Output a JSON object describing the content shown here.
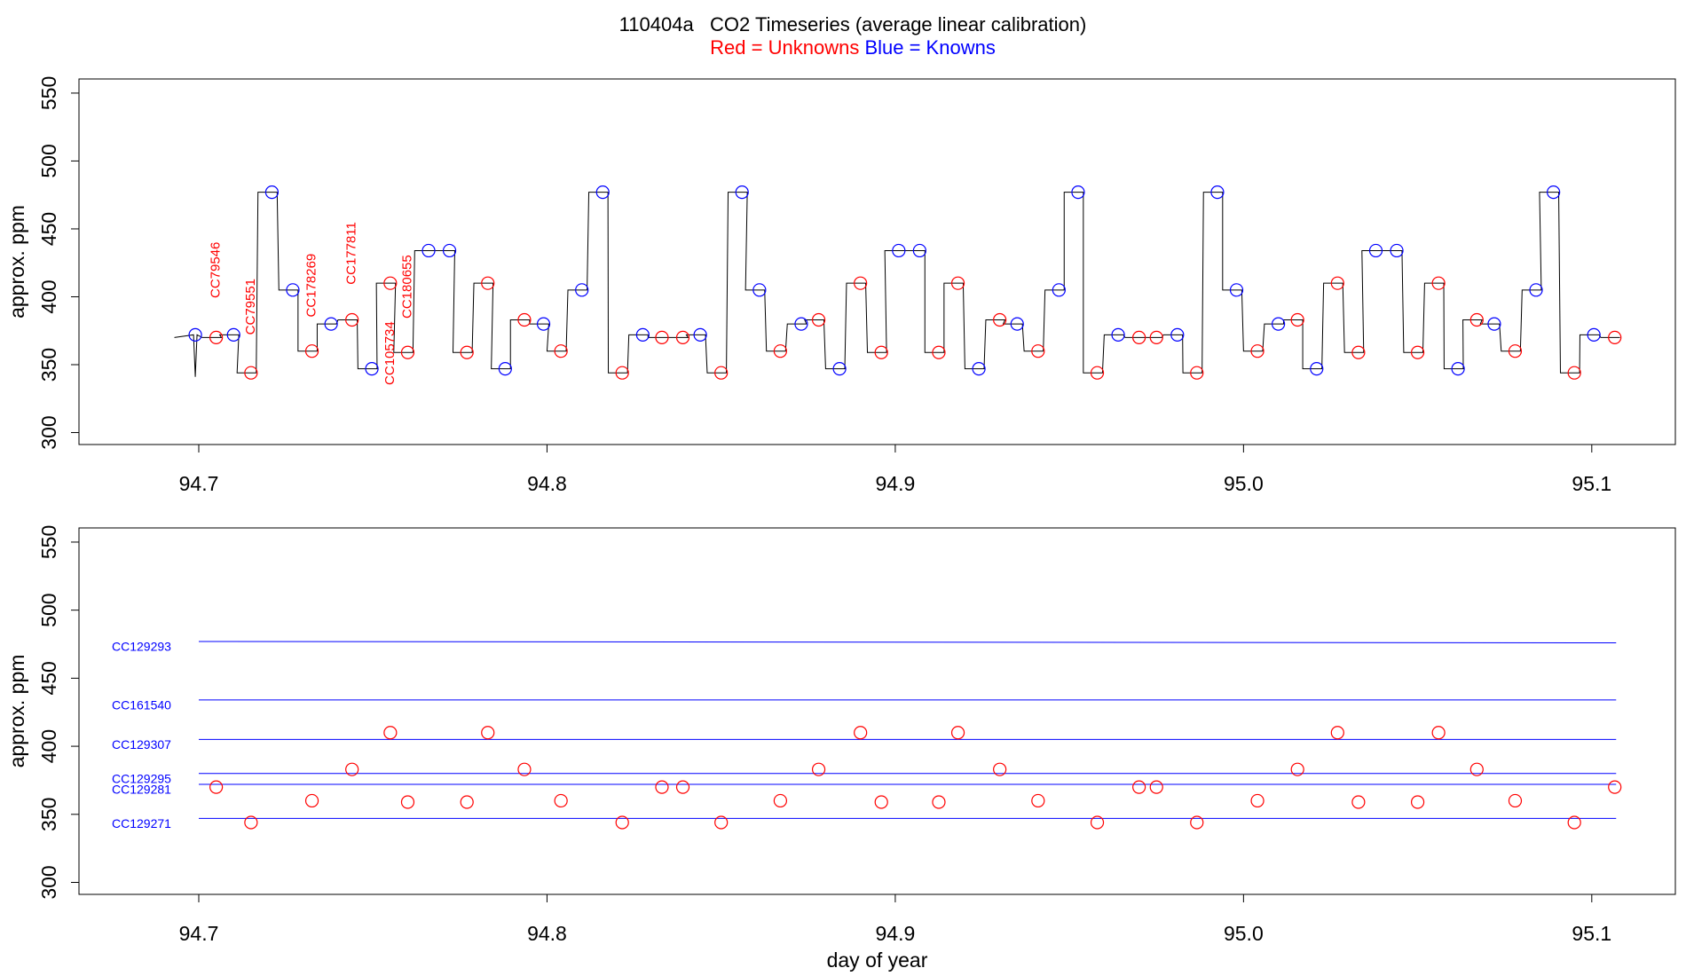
{
  "chart_data": [
    {
      "type": "scatter",
      "title": "110404a   CO2 Timeseries (average linear calibration)",
      "ylabel": "approx. ppm",
      "xlim": [
        94.6656,
        95.124
      ],
      "ylim": [
        291.2,
        560.4
      ],
      "xticks": [
        94.7,
        94.8,
        94.9,
        {
          "value": 95,
          "label": "95.0"
        },
        95.1
      ],
      "yticks": [
        300,
        350,
        400,
        450,
        500,
        550
      ],
      "trace": {
        "color": "#000000",
        "x": [
          94.693,
          94.6985,
          94.699,
          94.6995,
          94.701,
          94.7065,
          94.706,
          94.7115,
          94.711,
          94.7165,
          94.717,
          94.7225,
          94.723,
          94.7285,
          94.7285,
          94.734,
          94.734,
          94.7395,
          94.74,
          94.7455,
          94.7457,
          94.7512,
          94.751,
          94.7565,
          94.756,
          94.7615,
          94.762,
          94.7675,
          94.768,
          94.7735,
          94.773,
          94.7785,
          94.779,
          94.7845,
          94.784,
          94.7895,
          94.7895,
          94.795,
          94.795,
          94.8005,
          94.8,
          94.8055,
          94.806,
          94.8115,
          94.812,
          94.8175,
          94.8176,
          94.8231,
          94.8235,
          94.829,
          94.829,
          94.8345,
          94.835,
          94.8405,
          94.84,
          94.8455,
          94.846,
          94.8515,
          94.852,
          94.8575,
          94.857,
          94.8625,
          94.863,
          94.8685,
          94.869,
          94.8745,
          94.874,
          94.8795,
          94.88,
          94.8855,
          94.886,
          94.8915,
          94.892,
          94.8975,
          94.897,
          94.9025,
          94.903,
          94.9085,
          94.9085,
          94.914,
          94.914,
          94.9195,
          94.92,
          94.9255,
          94.926,
          94.9315,
          94.931,
          94.9365,
          94.937,
          94.9425,
          94.943,
          94.9485,
          94.9485,
          94.954,
          94.954,
          94.9595,
          94.96,
          94.9655,
          94.966,
          94.9715,
          94.971,
          94.9765,
          94.977,
          94.9825,
          94.9826,
          94.9881,
          94.9885,
          94.994,
          94.994,
          94.9995,
          95.0,
          95.0055,
          95.006,
          95.0115,
          95.0115,
          95.017,
          95.017,
          95.0225,
          95.023,
          95.0285,
          95.029,
          95.0345,
          95.034,
          95.0395,
          95.04,
          95.0455,
          95.046,
          95.0515,
          95.052,
          95.0575,
          95.0576,
          95.0631,
          95.063,
          95.0685,
          95.068,
          95.0735,
          95.074,
          95.0795,
          95.08,
          95.0855,
          95.085,
          95.0905,
          95.091,
          95.0965,
          95.0966,
          95.1021,
          95.1026,
          95.1081
        ],
        "values": [
          370,
          372,
          341,
          372,
          370,
          370,
          372,
          372,
          344,
          344,
          477,
          477,
          405,
          405,
          360,
          360,
          380,
          380,
          383,
          383,
          347,
          347,
          410,
          410,
          359,
          359,
          434,
          434,
          434,
          434,
          359,
          359,
          410,
          410,
          347,
          347,
          383,
          383,
          380,
          380,
          360,
          360,
          405,
          405,
          477,
          477,
          344,
          344,
          372,
          372,
          370,
          370,
          370,
          370,
          372,
          372,
          344,
          344,
          477,
          477,
          405,
          405,
          360,
          360,
          380,
          380,
          383,
          383,
          347,
          347,
          410,
          410,
          359,
          359,
          434,
          434,
          434,
          434,
          359,
          359,
          410,
          410,
          347,
          347,
          383,
          383,
          380,
          380,
          360,
          360,
          405,
          405,
          477,
          477,
          344,
          344,
          372,
          372,
          370,
          370,
          370,
          370,
          372,
          372,
          344,
          344,
          477,
          477,
          405,
          405,
          360,
          360,
          380,
          380,
          383,
          383,
          347,
          347,
          410,
          410,
          359,
          359,
          434,
          434,
          434,
          434,
          359,
          359,
          410,
          410,
          347,
          347,
          383,
          383,
          380,
          380,
          360,
          360,
          405,
          405,
          477,
          477,
          344,
          344,
          372,
          372,
          370,
          370
        ]
      },
      "series": [
        {
          "name": "Red = Unknowns",
          "color": "#ff0000",
          "x": [
            94.705,
            94.715,
            94.7325,
            94.744,
            94.755,
            94.76,
            94.777,
            94.783,
            94.7935,
            94.804,
            94.8216,
            94.833,
            94.839,
            94.85,
            94.867,
            94.878,
            94.89,
            94.896,
            94.9125,
            94.918,
            94.93,
            94.941,
            94.958,
            94.97,
            94.975,
            94.9866,
            95.004,
            95.0155,
            95.027,
            95.033,
            95.05,
            95.056,
            95.067,
            95.078,
            95.095,
            95.1066
          ],
          "values": [
            370,
            344,
            360,
            383,
            410,
            359,
            359,
            410,
            383,
            360,
            344,
            370,
            370,
            344,
            360,
            383,
            410,
            359,
            359,
            410,
            383,
            360,
            344,
            370,
            370,
            344,
            360,
            383,
            410,
            359,
            359,
            410,
            383,
            360,
            344,
            370
          ]
        },
        {
          "name": "Blue = Knowns",
          "color": "#0000ff",
          "x": [
            94.699,
            94.71,
            94.721,
            94.727,
            94.738,
            94.7497,
            94.766,
            94.772,
            94.788,
            94.799,
            94.81,
            94.816,
            94.8275,
            94.844,
            94.856,
            94.861,
            94.873,
            94.884,
            94.901,
            94.907,
            94.924,
            94.935,
            94.947,
            94.9525,
            94.964,
            94.981,
            94.9925,
            94.998,
            95.01,
            95.021,
            95.038,
            95.044,
            95.0616,
            95.072,
            95.084,
            95.089,
            95.1006
          ],
          "values": [
            372,
            372,
            477,
            405,
            380,
            347,
            434,
            434,
            347,
            380,
            405,
            477,
            372,
            372,
            477,
            405,
            380,
            347,
            434,
            434,
            347,
            380,
            405,
            477,
            372,
            372,
            477,
            405,
            380,
            347,
            434,
            434,
            347,
            380,
            405,
            477,
            372
          ]
        }
      ],
      "annotations": [
        {
          "text": "CC79546",
          "x": 94.705,
          "y": 399
        },
        {
          "text": "CC79551",
          "x": 94.715,
          "y": 372
        },
        {
          "text": "CC178269",
          "x": 94.7325,
          "y": 385
        },
        {
          "text": "CC177811",
          "x": 94.744,
          "y": 409
        },
        {
          "text": "CC105734",
          "x": 94.755,
          "y": 335
        },
        {
          "text": "CC180655",
          "x": 94.76,
          "y": 384
        }
      ]
    },
    {
      "type": "line",
      "xlabel": "day of year",
      "ylabel": "approx. ppm",
      "xlim": [
        94.6656,
        95.124
      ],
      "ylim": [
        291.2,
        560.4
      ],
      "xticks": [
        94.7,
        94.8,
        94.9,
        {
          "value": 95,
          "label": "95.0"
        },
        95.1
      ],
      "yticks": [
        300,
        350,
        400,
        450,
        500,
        550
      ],
      "series": [
        {
          "name": "CC129293",
          "color": "#0000ff",
          "x": [
            94.7,
            95.107
          ],
          "values": [
            477,
            476
          ]
        },
        {
          "name": "CC161540",
          "color": "#0000ff",
          "x": [
            94.7,
            95.107
          ],
          "values": [
            434,
            434
          ]
        },
        {
          "name": "CC129307",
          "color": "#0000ff",
          "x": [
            94.7,
            95.107
          ],
          "values": [
            405,
            405
          ]
        },
        {
          "name": "CC129295",
          "color": "#0000ff",
          "x": [
            94.7,
            95.107
          ],
          "values": [
            380,
            380
          ]
        },
        {
          "name": "CC129281",
          "color": "#0000ff",
          "x": [
            94.7,
            95.107
          ],
          "values": [
            372,
            372
          ]
        },
        {
          "name": "CC129271",
          "color": "#0000ff",
          "x": [
            94.7,
            95.107
          ],
          "values": [
            347,
            347
          ]
        }
      ],
      "points": {
        "color": "#ff0000",
        "x": [
          94.705,
          94.715,
          94.7325,
          94.744,
          94.755,
          94.76,
          94.777,
          94.783,
          94.7935,
          94.804,
          94.8216,
          94.833,
          94.839,
          94.85,
          94.867,
          94.878,
          94.89,
          94.896,
          94.9125,
          94.918,
          94.93,
          94.941,
          94.958,
          94.97,
          94.975,
          94.9866,
          95.004,
          95.0155,
          95.027,
          95.033,
          95.05,
          95.056,
          95.067,
          95.078,
          95.095,
          95.1066
        ],
        "values": [
          370,
          344,
          360,
          383,
          410,
          359,
          359,
          410,
          383,
          360,
          344,
          370,
          370,
          344,
          360,
          383,
          410,
          359,
          359,
          410,
          383,
          360,
          344,
          370,
          370,
          344,
          360,
          383,
          410,
          359,
          359,
          410,
          383,
          360,
          344,
          370
        ]
      }
    }
  ]
}
